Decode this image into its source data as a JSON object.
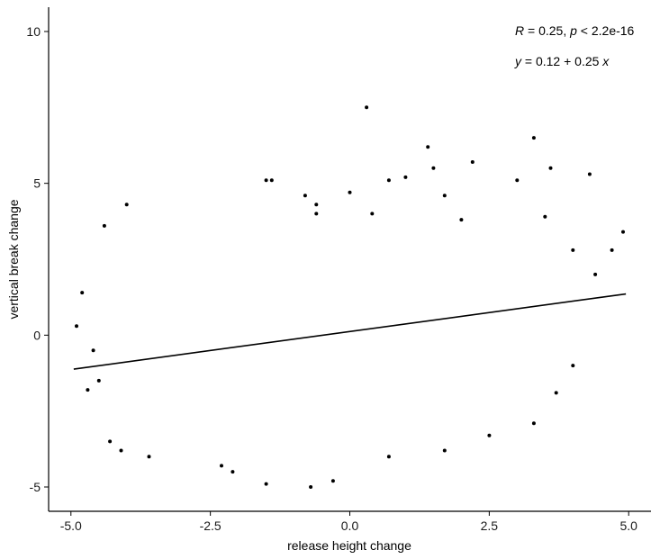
{
  "chart_data": {
    "type": "scatter",
    "title": "",
    "xlabel": "release height change",
    "ylabel": "vertical break change",
    "xlim": [
      -5.4,
      5.4
    ],
    "ylim": [
      -5.8,
      10.8
    ],
    "xticks": [
      -5.0,
      -2.5,
      0.0,
      2.5,
      5.0
    ],
    "xtick_labels": [
      "-5.0",
      "-2.5",
      "0.0",
      "2.5",
      "5.0"
    ],
    "yticks": [
      -5,
      0,
      5,
      10
    ],
    "ytick_labels": [
      "-5",
      "0",
      "5",
      "10"
    ],
    "grid": false,
    "regression": {
      "intercept": 0.12,
      "slope": 0.25,
      "x_range": [
        -4.95,
        4.95
      ]
    },
    "annotation": {
      "r_label": "R",
      "r_text": " = 0.25, ",
      "p_label": "p",
      "p_text": " < 2.2e-16",
      "eq_y": "y",
      "eq_text": " = 0.12 + 0.25 ",
      "eq_x": "x"
    },
    "series": [
      {
        "points": [
          [
            0.3,
            7.5
          ],
          [
            3.3,
            6.5
          ],
          [
            1.4,
            6.2
          ],
          [
            2.2,
            5.7
          ],
          [
            1.5,
            5.5
          ],
          [
            3.6,
            5.5
          ],
          [
            4.3,
            5.3
          ],
          [
            1.0,
            5.2
          ],
          [
            3.0,
            5.1
          ],
          [
            -1.4,
            5.1
          ],
          [
            -1.5,
            5.1
          ],
          [
            0.7,
            5.1
          ],
          [
            -4.0,
            4.3
          ],
          [
            -4.4,
            3.6
          ],
          [
            -0.8,
            4.6
          ],
          [
            0.0,
            4.7
          ],
          [
            -0.6,
            4.3
          ],
          [
            1.7,
            4.6
          ],
          [
            3.5,
            3.9
          ],
          [
            4.9,
            3.4
          ],
          [
            -4.8,
            1.4
          ],
          [
            -4.9,
            0.3
          ],
          [
            -4.6,
            -0.5
          ],
          [
            -4.7,
            -1.8
          ],
          [
            -4.5,
            -1.5
          ],
          [
            -4.3,
            -3.5
          ],
          [
            -4.1,
            -3.8
          ],
          [
            -3.6,
            -4.0
          ],
          [
            -2.3,
            -4.3
          ],
          [
            -2.1,
            -4.5
          ],
          [
            -1.5,
            -4.9
          ],
          [
            -0.7,
            -5.0
          ],
          [
            -0.3,
            -4.8
          ],
          [
            0.7,
            -4.0
          ],
          [
            1.7,
            -3.8
          ],
          [
            2.5,
            -3.3
          ],
          [
            3.3,
            -2.9
          ],
          [
            3.7,
            -1.9
          ],
          [
            4.0,
            -1.0
          ],
          [
            4.7,
            2.8
          ],
          [
            4.4,
            2.0
          ],
          [
            4.0,
            2.8
          ],
          [
            2.0,
            3.8
          ],
          [
            0.4,
            4.0
          ],
          [
            -0.6,
            4.0
          ]
        ]
      }
    ]
  }
}
